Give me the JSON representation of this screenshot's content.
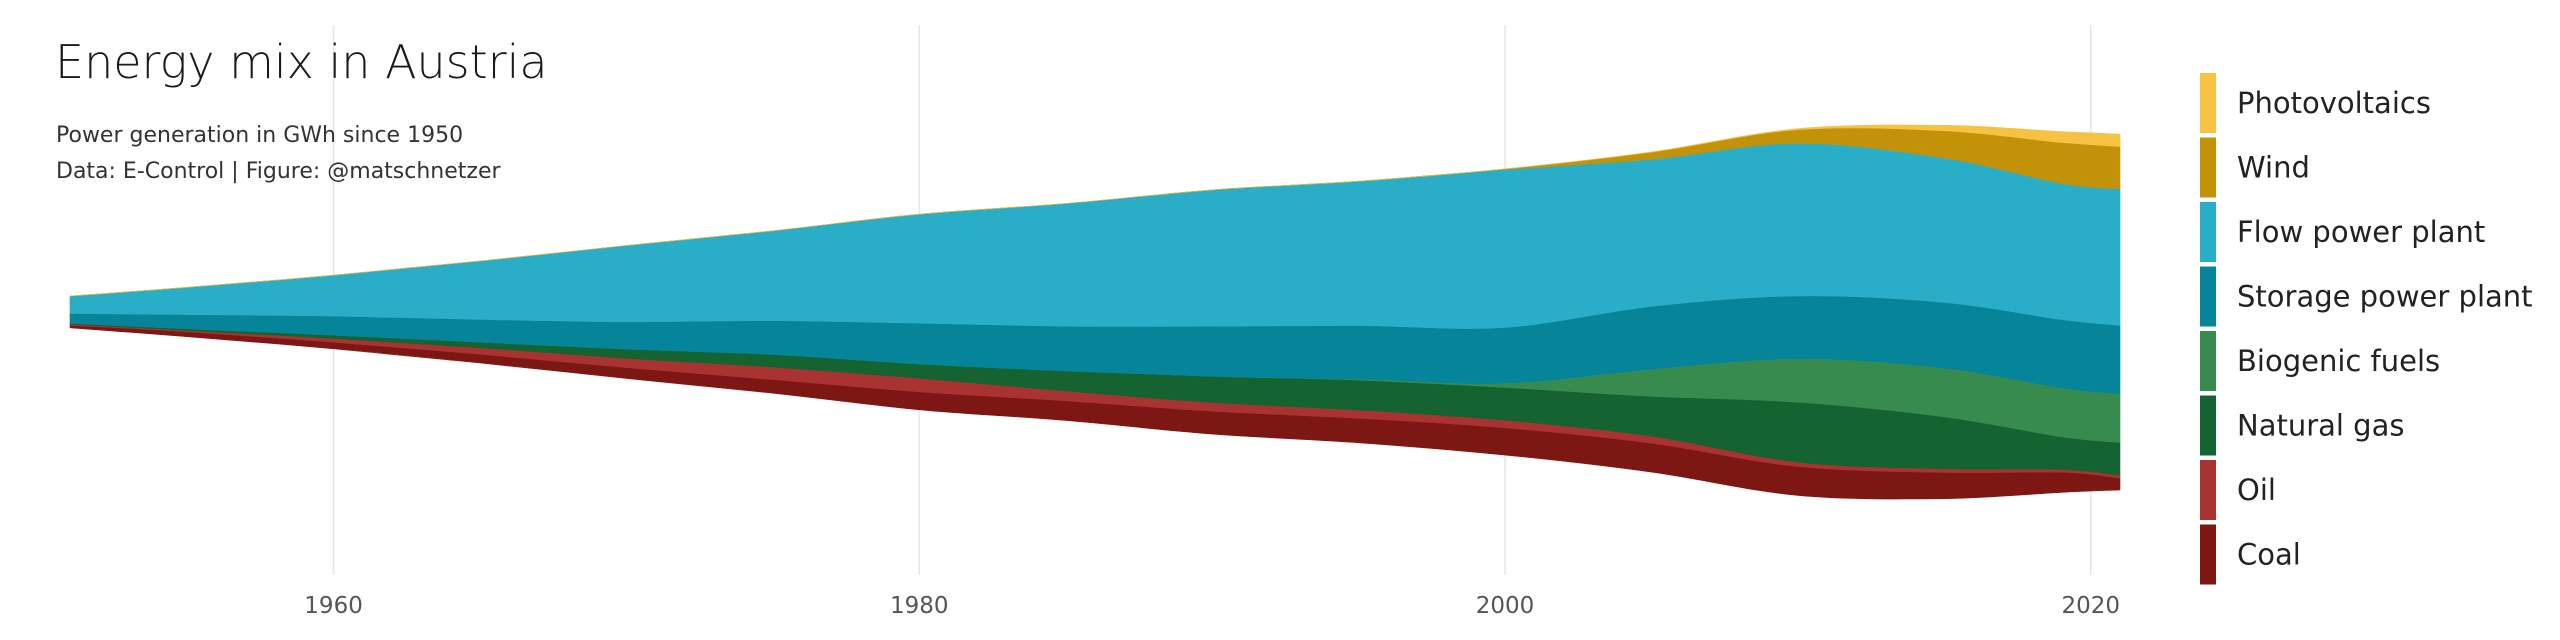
{
  "chart_data": {
    "type": "area",
    "title": "Energy mix in Austria",
    "subtitle": "Power generation in GWh since 1950",
    "caption": "Data: E-Control | Figure: @matschnetzer",
    "xlim": [
      1951,
      2021
    ],
    "x_ticks": [
      1960,
      1980,
      2000,
      2020
    ],
    "grid": true,
    "legend_position": "right",
    "x": [
      1951,
      1955,
      1960,
      1965,
      1970,
      1975,
      1980,
      1985,
      1990,
      1995,
      2000,
      2005,
      2010,
      2015,
      2019,
      2021
    ],
    "series": [
      {
        "name": "Coal",
        "color": "#7d1714",
        "values": [
          500,
          900,
          1200,
          1600,
          2000,
          2500,
          3300,
          3600,
          4200,
          4500,
          5000,
          5300,
          5300,
          4800,
          3700,
          2200
        ]
      },
      {
        "name": "Oil",
        "color": "#a93331",
        "values": [
          200,
          250,
          700,
          1200,
          1700,
          2300,
          2500,
          1800,
          1600,
          1500,
          1400,
          1300,
          800,
          700,
          500,
          500
        ]
      },
      {
        "name": "Natural gas",
        "color": "#146330",
        "values": [
          150,
          300,
          600,
          1000,
          1700,
          2300,
          2600,
          3700,
          4800,
          5500,
          6000,
          7300,
          11000,
          9500,
          6000,
          6000
        ]
      },
      {
        "name": "Biogenic fuels",
        "color": "#378b4f",
        "values": [
          0,
          0,
          0,
          0,
          0,
          0,
          0,
          0,
          0,
          200,
          800,
          5000,
          8000,
          9000,
          9000,
          9000
        ]
      },
      {
        "name": "Storage power plant",
        "color": "#05849a",
        "values": [
          1800,
          2600,
          3500,
          4200,
          5000,
          6200,
          7500,
          8200,
          9200,
          9800,
          10200,
          11500,
          11500,
          12000,
          12500,
          12500
        ]
      },
      {
        "name": "Flow power plant",
        "color": "#2aaec8",
        "values": [
          3200,
          5000,
          7500,
          10700,
          14000,
          16500,
          20000,
          22500,
          25000,
          26500,
          29000,
          27000,
          28000,
          26500,
          25000,
          25000
        ]
      },
      {
        "name": "Wind",
        "color": "#c29308",
        "values": [
          0,
          0,
          0,
          0,
          0,
          0,
          0,
          0,
          0,
          0,
          100,
          1300,
          2500,
          5000,
          7500,
          7800
        ]
      },
      {
        "name": "Photovoltaics",
        "color": "#f5c242",
        "values": [
          0,
          0,
          0,
          0,
          0,
          0,
          0,
          0,
          0,
          0,
          0,
          50,
          200,
          1000,
          2000,
          2300
        ]
      }
    ]
  }
}
